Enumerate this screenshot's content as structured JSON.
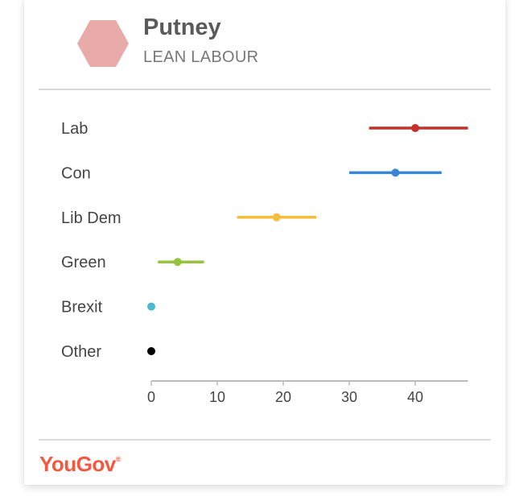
{
  "header": {
    "constituency": "Putney",
    "rating": "LEAN LABOUR",
    "hex_color": "#e9aaaa"
  },
  "brand": {
    "name": "YouGov",
    "mark": "®",
    "color": "#f15a40"
  },
  "chart_data": {
    "type": "scatter",
    "style": "dot-with-range",
    "xlim": [
      0,
      48
    ],
    "xticks": [
      0,
      10,
      20,
      30,
      40
    ],
    "grid": false,
    "legend": "none",
    "series": [
      {
        "name": "Lab",
        "value": 40,
        "low": 33,
        "high": 48,
        "color": "#c62f2a"
      },
      {
        "name": "Con",
        "value": 37,
        "low": 30,
        "high": 44,
        "color": "#3a86d4"
      },
      {
        "name": "Lib Dem",
        "value": 19,
        "low": 13,
        "high": 25,
        "color": "#f6bd3c"
      },
      {
        "name": "Green",
        "value": 4,
        "low": 1,
        "high": 8,
        "color": "#94c43c"
      },
      {
        "name": "Brexit",
        "value": 0,
        "low": 0,
        "high": 0,
        "color": "#4db8d4"
      },
      {
        "name": "Other",
        "value": 0,
        "low": 0,
        "high": 0,
        "color": "#000000"
      }
    ]
  }
}
